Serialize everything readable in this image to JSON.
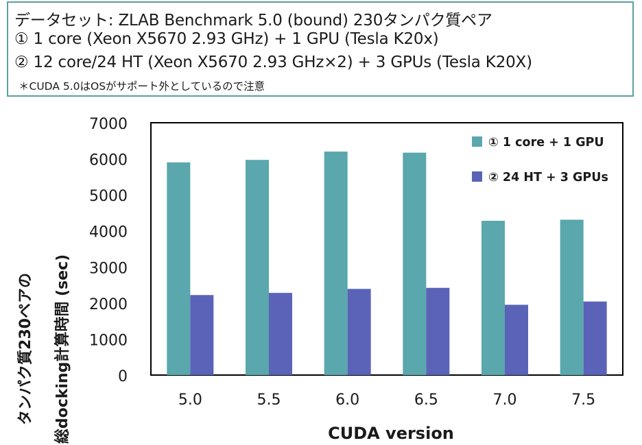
{
  "info": {
    "lines": [
      "データセット: ZLAB Benchmark 5.0 (bound) 230タンパク質ペア",
      "① 1 core (Xeon X5670 2.93 GHz) + 1 GPU (Tesla K20x)",
      "② 12 core/24 HT (Xeon X5670 2.93 GHz×2) + 3 GPUs (Tesla K20X)"
    ],
    "note": "＊CUDA 5.0はOSがサポート外としているので注意",
    "border_color": "#5aa0a3"
  },
  "chart_data": {
    "type": "bar",
    "categories": [
      "5.0",
      "5.5",
      "6.0",
      "6.5",
      "7.0",
      "7.5"
    ],
    "series": [
      {
        "name": "① 1 core + 1 GPU",
        "color": "#5aa7ad",
        "values": [
          5900,
          5970,
          6200,
          6170,
          4280,
          4310
        ]
      },
      {
        "name": "② 24 HT + 3 GPUs",
        "color": "#5b63b8",
        "values": [
          2220,
          2280,
          2390,
          2420,
          1950,
          2040
        ]
      }
    ],
    "xlabel": "CUDA version",
    "ylabel": [
      "タンパク質230ペアの",
      "総docking計算時間 (sec)"
    ],
    "ylim": [
      0,
      7000
    ],
    "yticks": [
      0,
      1000,
      2000,
      3000,
      4000,
      5000,
      6000,
      7000
    ],
    "legend_position": "top-right",
    "grid": false
  }
}
